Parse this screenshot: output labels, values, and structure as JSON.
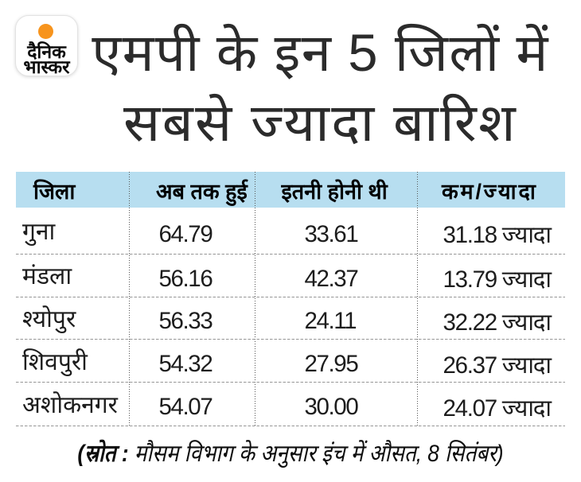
{
  "brand": {
    "line1": "दैनिक",
    "line2": "भास्कर",
    "sun_color": "#f7941d"
  },
  "title": {
    "line1": "एमपी के इन 5 जिलों में",
    "line2": "सबसे ज्यादा बारिश"
  },
  "table": {
    "header_bg": "#b7def0",
    "columns": [
      "जिला",
      "अब तक हुई",
      "इतनी होनी थी",
      "कम/ज्यादा"
    ],
    "rows": [
      [
        "गुना",
        "64.79",
        "33.61",
        "31.18 ज्यादा"
      ],
      [
        "मंडला",
        "56.16",
        "42.37",
        "13.79 ज्यादा"
      ],
      [
        "श्योपुर",
        "56.33",
        "24.11",
        "32.22 ज्यादा"
      ],
      [
        "शिवपुरी",
        "54.32",
        "27.95",
        "26.37 ज्यादा"
      ],
      [
        "अशोकनगर",
        "54.07",
        "30.00",
        "24.07 ज्यादा"
      ]
    ]
  },
  "footer": {
    "bold": "(स्रोत :",
    "rest": " मौसम विभाग के अनुसार इंच में औसत, 8 सितंबर)"
  },
  "chart_data": {
    "type": "table",
    "title": "एमपी के इन 5 जिलों में सबसे ज्यादा बारिश",
    "columns": [
      "जिला",
      "अब तक हुई",
      "इतनी होनी थी",
      "कम/ज्यादा"
    ],
    "unit_note": "इंच में औसत",
    "rows": [
      {
        "district": "गुना",
        "rain_so_far": 64.79,
        "rain_expected": 33.61,
        "difference": 31.18,
        "difference_label": "31.18 ज्यादा"
      },
      {
        "district": "मंडला",
        "rain_so_far": 56.16,
        "rain_expected": 42.37,
        "difference": 13.79,
        "difference_label": "13.79 ज्यादा"
      },
      {
        "district": "श्योपुर",
        "rain_so_far": 56.33,
        "rain_expected": 24.11,
        "difference": 32.22,
        "difference_label": "32.22 ज्यादा"
      },
      {
        "district": "शिवपुरी",
        "rain_so_far": 54.32,
        "rain_expected": 27.95,
        "difference": 26.37,
        "difference_label": "26.37 ज्यादा"
      },
      {
        "district": "अशोकनगर",
        "rain_so_far": 54.07,
        "rain_expected": 30.0,
        "difference": 24.07,
        "difference_label": "24.07 ज्यादा"
      }
    ],
    "source_note": "(स्रोत : मौसम विभाग के अनुसार इंच में औसत, 8 सितंबर)"
  }
}
